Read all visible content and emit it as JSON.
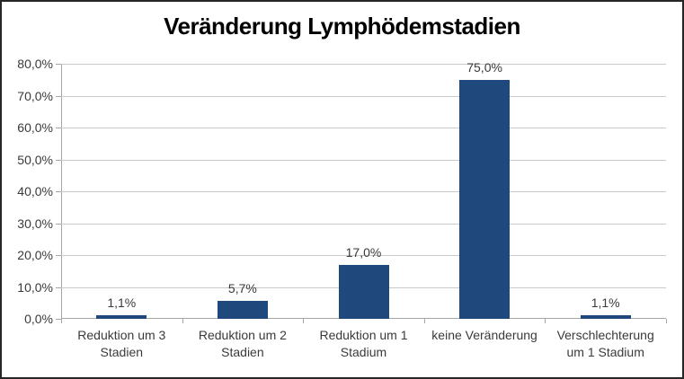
{
  "chart_data": {
    "type": "bar",
    "title": "Veränderung Lymphödemstadien",
    "categories": [
      "Reduktion um 3 Stadien",
      "Reduktion um 2 Stadien",
      "Reduktion um 1 Stadium",
      "keine Veränderung",
      "Verschlechterung um 1 Stadium"
    ],
    "category_label_lines": [
      [
        "Reduktion um 3",
        "Stadien"
      ],
      [
        "Reduktion um 2",
        "Stadien"
      ],
      [
        "Reduktion um 1",
        "Stadium"
      ],
      [
        "keine Veränderung"
      ],
      [
        "Verschlechterung",
        "um 1 Stadium"
      ]
    ],
    "values": [
      1.1,
      5.7,
      17.0,
      75.0,
      1.1
    ],
    "value_labels": [
      "1,1%",
      "5,7%",
      "17,0%",
      "75,0%",
      "1,1%"
    ],
    "xlabel": "",
    "ylabel": "",
    "ylim": [
      0,
      80
    ],
    "ytick_step": 10,
    "ytick_labels": [
      "0,0%",
      "10,0%",
      "20,0%",
      "30,0%",
      "40,0%",
      "50,0%",
      "60,0%",
      "70,0%",
      "80,0%"
    ],
    "grid": true,
    "legend": "none",
    "bar_color": "#1f497d",
    "gridline_color": "#c9c9c9",
    "axis_color": "#a6a6a6",
    "label_color": "#3a3a3a",
    "title_color": "#000000"
  }
}
